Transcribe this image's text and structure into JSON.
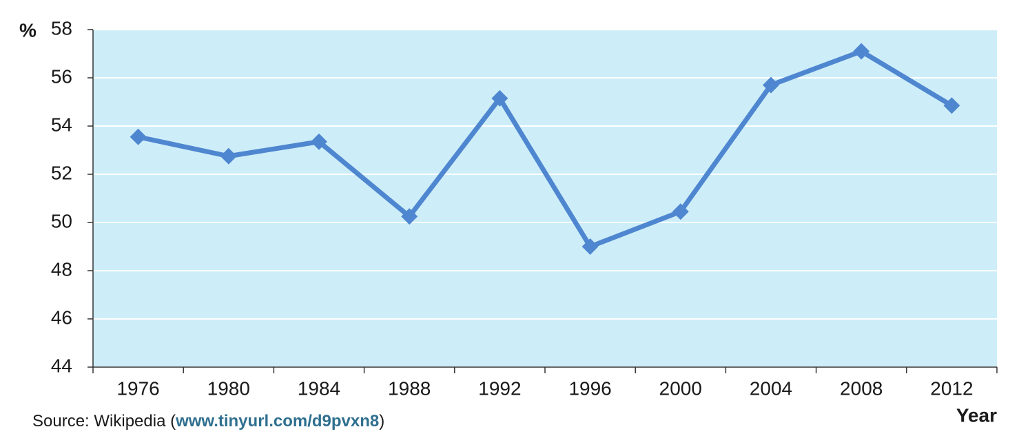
{
  "chart_data": {
    "type": "line",
    "y_axis_label": "%",
    "x_axis_label": "Year",
    "categories": [
      "1976",
      "1980",
      "1984",
      "1988",
      "1992",
      "1996",
      "2000",
      "2004",
      "2008",
      "2012"
    ],
    "series": [
      {
        "color": "#4f86d0",
        "values": [
          53.55,
          52.75,
          53.35,
          50.25,
          55.15,
          49.0,
          50.45,
          55.7,
          57.1,
          54.85
        ]
      }
    ],
    "ylim": [
      44,
      58
    ],
    "yticks": [
      44,
      46,
      48,
      50,
      52,
      54,
      56,
      58
    ],
    "grid": true,
    "background": "#cdeef9",
    "source": {
      "text": "Source: Wikipedia (",
      "link": "www.tinyurl.com/d9pvxn8",
      "close": ")"
    }
  }
}
